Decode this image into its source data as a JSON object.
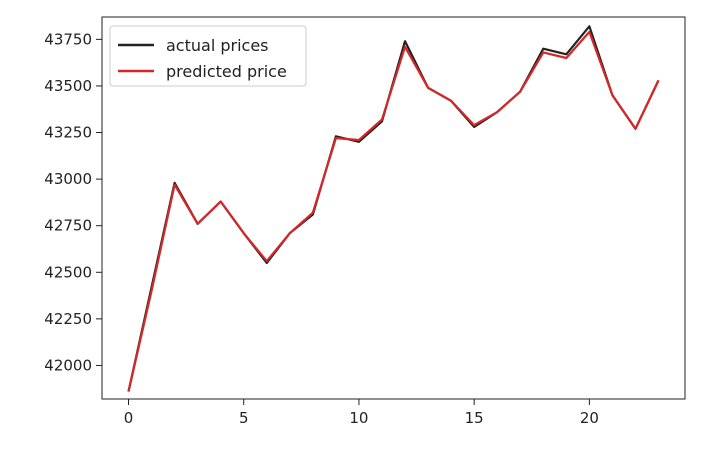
{
  "chart_data": {
    "type": "line",
    "x": [
      0,
      1,
      2,
      3,
      4,
      5,
      6,
      7,
      8,
      9,
      10,
      11,
      12,
      13,
      14,
      15,
      16,
      17,
      18,
      19,
      20,
      21,
      22,
      23
    ],
    "series": [
      {
        "name": "actual prices",
        "color": "#222222",
        "values": [
          41860,
          42420,
          42980,
          42760,
          42880,
          42710,
          42550,
          42710,
          42810,
          43230,
          43200,
          43310,
          43740,
          43490,
          43420,
          43280,
          43360,
          43470,
          43700,
          43670,
          43820,
          43450,
          43270,
          43530
        ]
      },
      {
        "name": "predicted price",
        "color": "#d62728",
        "values": [
          41860,
          42400,
          42970,
          42760,
          42880,
          42710,
          42560,
          42710,
          42820,
          43220,
          43210,
          43320,
          43710,
          43490,
          43420,
          43290,
          43360,
          43470,
          43680,
          43650,
          43790,
          43450,
          43270,
          43530
        ]
      }
    ],
    "xlim": [
      -1.15,
      24.15
    ],
    "ylim": [
      41820,
      43870
    ],
    "xticks": [
      0,
      5,
      10,
      15,
      20
    ],
    "yticks": [
      42000,
      42250,
      42500,
      42750,
      43000,
      43250,
      43500,
      43750
    ],
    "xlabel": "",
    "ylabel": "",
    "title": "",
    "grid": false,
    "legend": "upper-left"
  }
}
